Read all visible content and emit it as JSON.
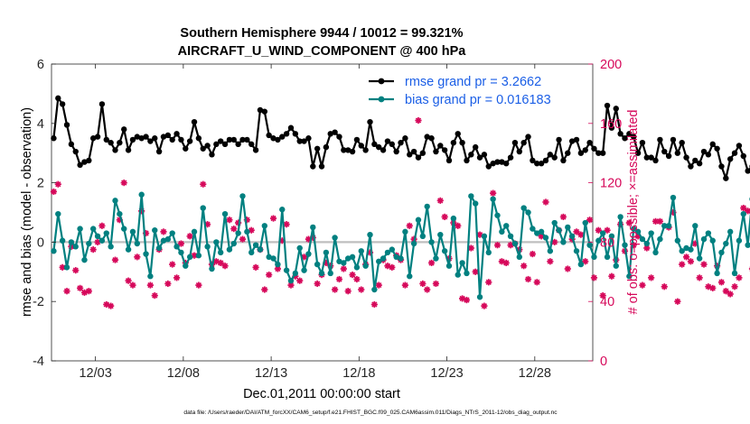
{
  "chart_data": {
    "type": "line",
    "title_line1": "Southern Hemisphere 9944 / 10012 = 99.321%",
    "title_line2": "AIRCRAFT_U_WIND_COMPONENT @ 400 hPa",
    "ylabel_left": "rmse and bias (model - observation)",
    "ylabel_right": "# of obs: o=possible; ×=assimilated",
    "xlabel": "Dec.01,2011 00:00:00 start",
    "footnote": "data file: /Users/raeder/DAI/ATM_forcXX/CAM6_setup/f.e21.FHIST_BGC.f09_025.CAM6assim.011/Diags_NTrS_2011-12/obs_diag_output.nc",
    "ylim_left": [
      -4,
      6
    ],
    "ylim_right": [
      0,
      200
    ],
    "xlim": [
      0.5,
      31.3
    ],
    "left_ticks": [
      "-4",
      "-2",
      "0",
      "2",
      "4",
      "6"
    ],
    "right_ticks": [
      "0",
      "40",
      "80",
      "120",
      "160",
      "200"
    ],
    "x_ticks": [
      {
        "label": "12/03",
        "x": 3
      },
      {
        "label": "12/08",
        "x": 8
      },
      {
        "label": "12/13",
        "x": 13
      },
      {
        "label": "12/18",
        "x": 18
      },
      {
        "label": "12/23",
        "x": 23
      },
      {
        "label": "12/28",
        "x": 28
      }
    ],
    "legend": {
      "rmse": "rmse grand pr = 3.2662",
      "bias": "bias grand pr = 0.016183"
    },
    "colors": {
      "rmse": "#000000",
      "bias": "#008080",
      "counts": "#d6085a",
      "zero_line": "#bfbfbf",
      "legend_text": "#1a5ee6"
    },
    "x_start": 0.625,
    "x_step": 0.25,
    "series": [
      {
        "name": "rmse",
        "values": [
          3.5,
          4.85,
          4.65,
          3.95,
          3.3,
          3.05,
          2.6,
          2.7,
          2.75,
          3.5,
          3.55,
          4.65,
          3.45,
          3.35,
          3.1,
          3.35,
          3.8,
          3.1,
          3.45,
          3.55,
          3.5,
          3.55,
          3.4,
          3.5,
          3.05,
          3.55,
          3.6,
          3.45,
          3.65,
          3.45,
          3.15,
          3.4,
          4.05,
          3.5,
          3.15,
          3.25,
          2.95,
          3.3,
          3.4,
          3.3,
          3.45,
          3.45,
          3.3,
          3.45,
          3.45,
          3.3,
          3.1,
          4.45,
          4.4,
          3.6,
          3.5,
          3.45,
          3.55,
          3.65,
          3.85,
          3.65,
          3.4,
          3.4,
          3.5,
          2.55,
          3.15,
          2.55,
          3.2,
          3.65,
          3.7,
          3.55,
          3.1,
          3.1,
          3.05,
          3.45,
          3.25,
          3.1,
          4.05,
          3.3,
          3.2,
          3.1,
          3.4,
          3.3,
          3.05,
          3.35,
          3.5,
          2.95,
          3.05,
          2.85,
          3.0,
          3.55,
          3.5,
          3.05,
          3.25,
          3.1,
          2.75,
          3.35,
          3.65,
          3.35,
          2.75,
          2.95,
          3.2,
          2.85,
          2.95,
          2.55,
          2.65,
          2.7,
          2.7,
          2.65,
          2.85,
          3.35,
          3.05,
          3.35,
          3.55,
          2.75,
          2.65,
          2.65,
          2.75,
          2.95,
          2.85,
          3.45,
          2.75,
          3.0,
          3.4,
          3.45,
          3.0,
          3.1,
          3.35,
          3.15,
          3.0,
          3.0,
          4.6,
          3.85,
          4.5,
          3.65,
          3.5,
          3.65,
          3.55,
          3.0,
          3.35,
          2.85,
          2.85,
          2.75,
          3.45,
          3.05,
          2.9,
          3.45,
          3.0,
          3.35,
          2.85,
          2.55,
          2.75,
          2.65,
          3.05,
          2.95,
          3.3,
          3.15,
          2.55,
          2.15,
          2.8,
          3.0,
          3.25,
          2.9,
          2.4,
          2.55,
          4.25,
          3.2
        ]
      },
      {
        "name": "bias",
        "values": [
          -0.3,
          0.95,
          0.05,
          -0.85,
          0.0,
          -0.15,
          0.45,
          -0.6,
          -0.05,
          0.45,
          0.2,
          0.05,
          0.3,
          -0.15,
          1.4,
          0.95,
          0.45,
          -0.25,
          0.35,
          -0.05,
          1.6,
          -0.4,
          -1.15,
          0.4,
          -0.2,
          0.05,
          0.1,
          0.3,
          -0.15,
          -0.35,
          -0.8,
          -0.5,
          0.35,
          -0.45,
          1.15,
          -0.15,
          -0.9,
          0.0,
          -0.35,
          0.95,
          -0.25,
          -0.05,
          0.3,
          1.55,
          0.35,
          -0.35,
          -0.1,
          -0.25,
          0.55,
          -0.5,
          -0.55,
          -0.75,
          1.1,
          -0.95,
          -1.3,
          -1.05,
          -0.2,
          -0.95,
          -0.4,
          0.5,
          -0.75,
          -1.05,
          -0.35,
          -1.05,
          0.15,
          -0.65,
          -0.7,
          -0.55,
          -0.5,
          -0.85,
          -0.3,
          -0.8,
          0.25,
          -1.6,
          -0.65,
          -0.55,
          -0.35,
          -0.25,
          -0.5,
          -0.55,
          0.35,
          -1.15,
          -0.05,
          0.75,
          0.2,
          1.2,
          0.0,
          -0.55,
          0.25,
          -0.3,
          -0.8,
          0.8,
          -1.1,
          -0.7,
          -1.05,
          1.55,
          1.3,
          -1.85,
          0.2,
          -0.35,
          1.45,
          0.9,
          0.35,
          0.55,
          0.2,
          -0.05,
          -0.5,
          1.15,
          1.0,
          0.45,
          0.3,
          0.35,
          0.15,
          -0.3,
          0.65,
          0.4,
          0.0,
          0.5,
          0.2,
          -0.3,
          -0.75,
          0.65,
          -0.1,
          -0.5,
          0.05,
          0.3,
          -0.5,
          0.2,
          -0.8,
          0.85,
          -0.1,
          -1.15,
          0.45,
          0.35,
          0.1,
          -0.05,
          0.3,
          -0.35,
          0.1,
          0.55,
          0.55,
          1.5,
          0.05,
          -0.3,
          -0.2,
          -0.25,
          0.55,
          -0.55,
          0.1,
          0.3,
          0.05,
          -1.05,
          -0.35,
          -0.05,
          0.35,
          -1.05,
          0.05,
          0.95,
          -0.1,
          1.45,
          -0.7
        ]
      },
      {
        "name": "obs_count",
        "values": [
          114,
          119,
          63,
          47,
          77,
          61,
          49,
          46,
          47,
          75,
          80,
          91,
          38,
          37,
          68,
          95,
          120,
          54,
          51,
          70,
          101,
          86,
          51,
          44,
          75,
          87,
          52,
          65,
          56,
          79,
          66,
          84,
          71,
          51,
          119,
          92,
          65,
          67,
          66,
          64,
          95,
          89,
          93,
          82,
          95,
          88,
          63,
          75,
          48,
          58,
          96,
          62,
          81,
          92,
          51,
          57,
          54,
          70,
          82,
          83,
          52,
          58,
          66,
          64,
          48,
          55,
          62,
          47,
          58,
          55,
          48,
          65,
          73,
          38,
          51,
          68,
          64,
          63,
          71,
          68,
          51,
          91,
          82,
          162,
          52,
          48,
          66,
          52,
          108,
          97,
          69,
          93,
          91,
          42,
          41,
          76,
          60,
          85,
          37,
          53,
          113,
          78,
          67,
          66,
          78,
          79,
          75,
          64,
          55,
          72,
          53,
          84,
          107,
          67,
          80,
          88,
          97,
          62,
          82,
          87,
          85,
          67,
          95,
          56,
          88,
          44,
          88,
          57,
          68,
          92,
          74,
          93,
          78,
          84,
          51,
          76,
          56,
          94,
          94,
          50,
          90,
          100,
          40,
          65,
          70,
          67,
          79,
          56,
          65,
          50,
          49,
          64,
          53,
          47,
          45,
          50,
          56,
          103,
          101,
          62,
          45,
          45
        ]
      }
    ]
  }
}
